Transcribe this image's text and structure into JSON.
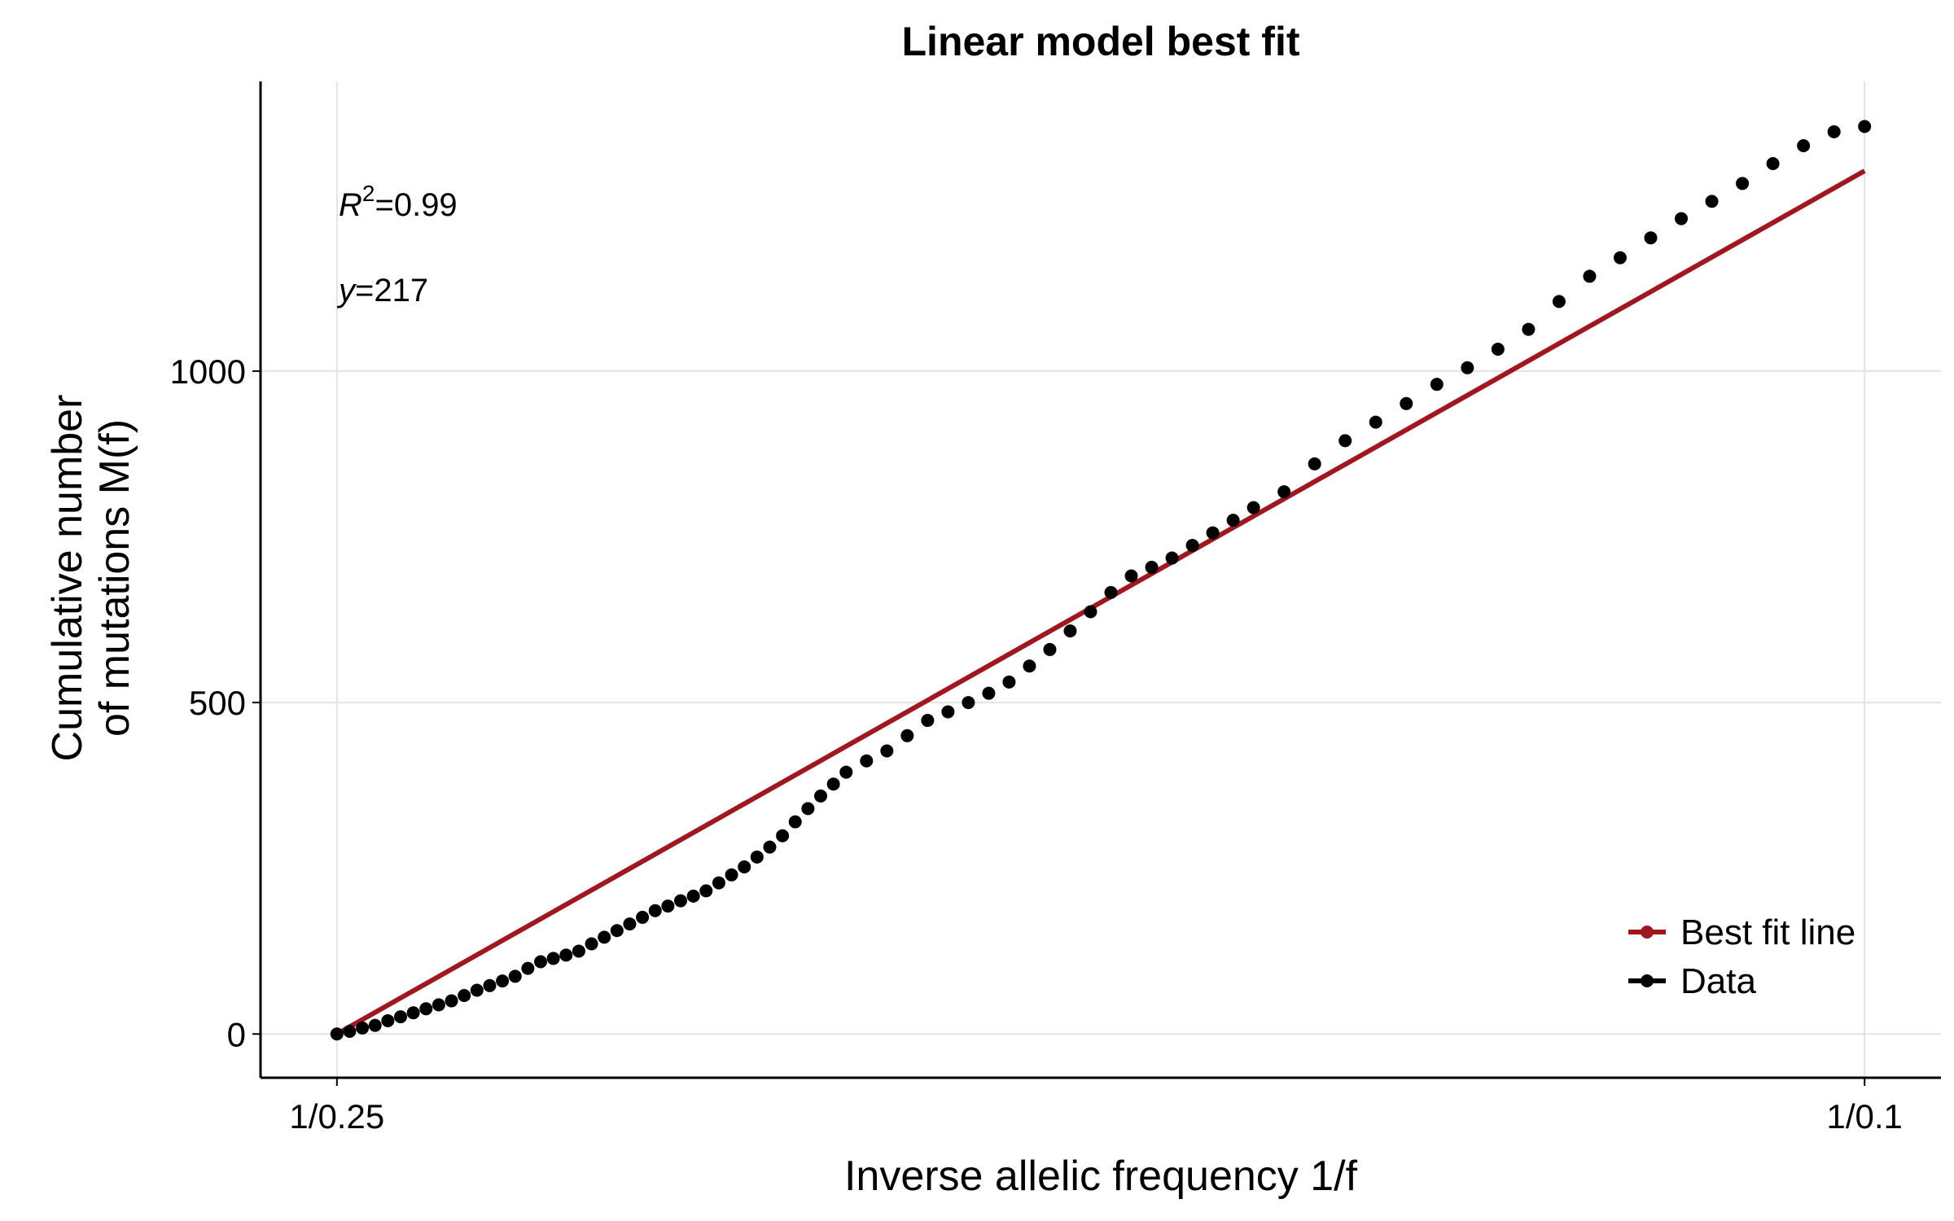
{
  "chart_data": {
    "type": "scatter",
    "title": "Linear model best fit",
    "xlabel": "Inverse allelic frequency 1/f",
    "ylabel": [
      "Cumulative number",
      "of mutations M(f)"
    ],
    "annotations": [
      {
        "italic": "R",
        "sup": "2",
        "rest": "=0.99"
      },
      {
        "italic": "y",
        "rest": "=217"
      }
    ],
    "xlim": [
      3.7,
      10.3
    ],
    "xticks": [
      {
        "value": 4,
        "label": "1/0.25"
      },
      {
        "value": 10,
        "label": "1/0.1"
      }
    ],
    "ylim": [
      -66,
      1437
    ],
    "yticks": [
      0,
      500,
      1000
    ],
    "grid": true,
    "legend": "lower right",
    "series": [
      {
        "name": "Best fit line",
        "color": "#a0181f",
        "mode": "line",
        "x": [
          4,
          10
        ],
        "values": [
          0,
          1302
        ]
      },
      {
        "name": "Data",
        "color": "#000000",
        "mode": "points",
        "x": [
          4.0,
          4.05,
          4.1,
          4.15,
          4.2,
          4.25,
          4.3,
          4.35,
          4.4,
          4.45,
          4.5,
          4.55,
          4.6,
          4.65,
          4.7,
          4.75,
          4.8,
          4.85,
          4.9,
          4.95,
          5.0,
          5.05,
          5.1,
          5.15,
          5.2,
          5.25,
          5.3,
          5.35,
          5.4,
          5.45,
          5.5,
          5.55,
          5.6,
          5.65,
          5.7,
          5.75,
          5.8,
          5.85,
          5.9,
          5.95,
          6.0,
          6.08,
          6.16,
          6.24,
          6.32,
          6.4,
          6.48,
          6.56,
          6.64,
          6.72,
          6.8,
          6.88,
          6.96,
          7.04,
          7.12,
          7.2,
          7.28,
          7.36,
          7.44,
          7.52,
          7.6,
          7.72,
          7.84,
          7.96,
          8.08,
          8.2,
          8.32,
          8.44,
          8.56,
          8.68,
          8.8,
          8.92,
          9.04,
          9.16,
          9.28,
          9.4,
          9.52,
          9.64,
          9.76,
          9.88,
          10.0
        ],
        "values": [
          0,
          4,
          9,
          13,
          20,
          26,
          32,
          38,
          44,
          50,
          58,
          66,
          73,
          80,
          87,
          99,
          109,
          114,
          119,
          125,
          136,
          146,
          156,
          166,
          176,
          186,
          193,
          201,
          208,
          216,
          228,
          240,
          252,
          267,
          282,
          299,
          320,
          340,
          359,
          377,
          395,
          412,
          427,
          450,
          473,
          486,
          500,
          514,
          531,
          555,
          580,
          608,
          637,
          666,
          691,
          704,
          718,
          737,
          756,
          775,
          794,
          818,
          860,
          895,
          923,
          951,
          980,
          1005,
          1033,
          1063,
          1105,
          1143,
          1171,
          1201,
          1230,
          1256,
          1283,
          1313,
          1340,
          1361,
          1369
        ]
      }
    ]
  }
}
